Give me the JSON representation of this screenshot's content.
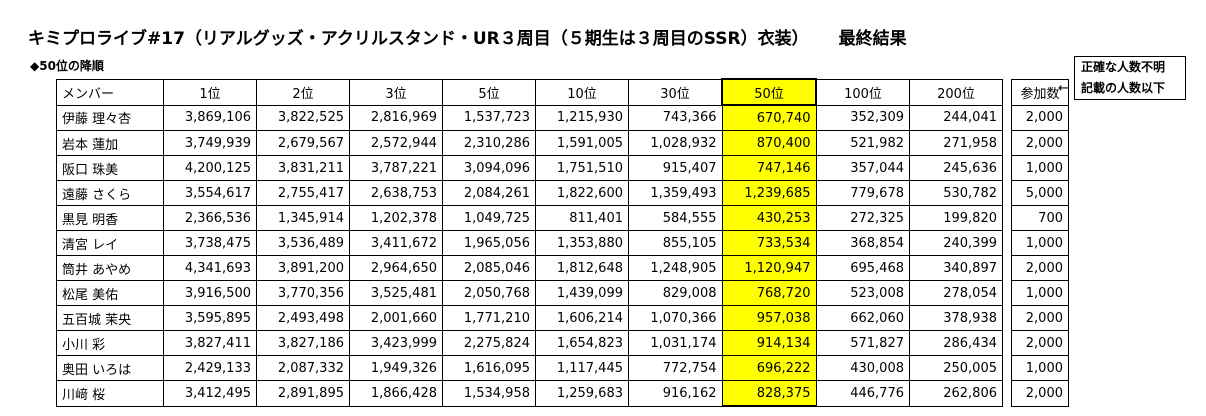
{
  "title": "キミプロライブ#17（リアルグッズ・アクリルスタンド・UR３周目（５期生は３周目のSSR）衣装）",
  "title_result": "最終結果",
  "subtitle": "◆50位の降順",
  "table": {
    "headers": [
      "メンバー",
      "1位",
      "2位",
      "3位",
      "5位",
      "10位",
      "30位",
      "50位",
      "100位",
      "200位"
    ],
    "count_header": "参加数",
    "highlight_color": "#ffff00",
    "rows": [
      {
        "name": "伊藤 理々杏",
        "values": [
          "3,869,106",
          "3,822,525",
          "2,816,969",
          "1,537,723",
          "1,215,930",
          "743,366",
          "670,740",
          "352,309",
          "244,041"
        ],
        "count": "2,000"
      },
      {
        "name": "岩本 蓮加",
        "values": [
          "3,749,939",
          "2,679,567",
          "2,572,944",
          "2,310,286",
          "1,591,005",
          "1,028,932",
          "870,400",
          "521,982",
          "271,958"
        ],
        "count": "2,000"
      },
      {
        "name": "阪口 珠美",
        "values": [
          "4,200,125",
          "3,831,211",
          "3,787,221",
          "3,094,096",
          "1,751,510",
          "915,407",
          "747,146",
          "357,044",
          "245,636"
        ],
        "count": "1,000"
      },
      {
        "name": "遠藤 さくら",
        "values": [
          "3,554,617",
          "2,755,417",
          "2,638,753",
          "2,084,261",
          "1,822,600",
          "1,359,493",
          "1,239,685",
          "779,678",
          "530,782"
        ],
        "count": "5,000"
      },
      {
        "name": "黒見 明香",
        "values": [
          "2,366,536",
          "1,345,914",
          "1,202,378",
          "1,049,725",
          "811,401",
          "584,555",
          "430,253",
          "272,325",
          "199,820"
        ],
        "count": "700"
      },
      {
        "name": "清宮 レイ",
        "values": [
          "3,738,475",
          "3,536,489",
          "3,411,672",
          "1,965,056",
          "1,353,880",
          "855,105",
          "733,534",
          "368,854",
          "240,399"
        ],
        "count": "1,000"
      },
      {
        "name": "筒井 あやめ",
        "values": [
          "4,341,693",
          "3,891,200",
          "2,964,650",
          "2,085,046",
          "1,812,648",
          "1,248,905",
          "1,120,947",
          "695,468",
          "340,897"
        ],
        "count": "2,000"
      },
      {
        "name": "松尾 美佑",
        "values": [
          "3,916,500",
          "3,770,356",
          "3,525,481",
          "2,050,768",
          "1,439,099",
          "829,008",
          "768,720",
          "523,008",
          "278,054"
        ],
        "count": "1,000"
      },
      {
        "name": "五百城 茉央",
        "values": [
          "3,595,895",
          "2,493,498",
          "2,001,660",
          "1,771,210",
          "1,606,214",
          "1,070,366",
          "957,038",
          "662,060",
          "378,938"
        ],
        "count": "2,000"
      },
      {
        "name": "小川 彩",
        "values": [
          "3,827,411",
          "3,827,186",
          "3,423,999",
          "2,275,824",
          "1,654,823",
          "1,031,174",
          "914,134",
          "571,827",
          "286,434"
        ],
        "count": "2,000"
      },
      {
        "name": "奥田 いろは",
        "values": [
          "2,429,133",
          "2,087,332",
          "1,949,326",
          "1,616,095",
          "1,117,445",
          "772,754",
          "696,222",
          "430,008",
          "250,005"
        ],
        "count": "1,000"
      },
      {
        "name": "川﨑 桜",
        "values": [
          "3,412,495",
          "2,891,895",
          "1,866,428",
          "1,534,958",
          "1,259,683",
          "916,162",
          "828,375",
          "446,776",
          "262,806"
        ],
        "count": "2,000"
      }
    ]
  },
  "note": {
    "line1": "正確な人数不明",
    "line2": "記載の人数以下",
    "arrow": "←"
  }
}
